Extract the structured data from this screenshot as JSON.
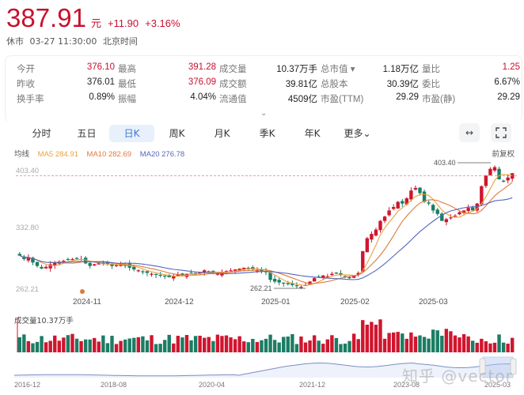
{
  "header": {
    "price": "387.91",
    "unit": "元",
    "change": "+11.90",
    "change_pct": "+3.16%",
    "market_status": "休市",
    "datetime": "03-27 11:30:00",
    "timezone": "北京时间"
  },
  "quote": {
    "rows": [
      [
        {
          "label": "今开",
          "value": "376.10",
          "color": "red"
        },
        {
          "label": "最高",
          "value": "391.28",
          "color": "red"
        },
        {
          "label": "成交量",
          "value": "10.37万手",
          "color": "black"
        },
        {
          "label": "总市值 ▾",
          "value": "1.18万亿",
          "color": "black"
        },
        {
          "label": "量比",
          "value": "1.25",
          "color": "red"
        }
      ],
      [
        {
          "label": "昨收",
          "value": "376.01",
          "color": "black"
        },
        {
          "label": "最低",
          "value": "376.09",
          "color": "red"
        },
        {
          "label": "成交额",
          "value": "39.81亿",
          "color": "black"
        },
        {
          "label": "总股本",
          "value": "30.39亿",
          "color": "black"
        },
        {
          "label": "委比",
          "value": "6.67%",
          "color": "black"
        }
      ],
      [
        {
          "label": "换手率",
          "value": "0.89%",
          "color": "black"
        },
        {
          "label": "振幅",
          "value": "4.04%",
          "color": "black"
        },
        {
          "label": "流通值",
          "value": "4509亿",
          "color": "black"
        },
        {
          "label": "市盈(TTM)",
          "value": "29.29",
          "color": "black"
        },
        {
          "label": "市盈(静)",
          "value": "29.29",
          "color": "black"
        }
      ]
    ],
    "expand_icon": "chevron-down-icon"
  },
  "tabs": [
    {
      "label": "分时",
      "active": false
    },
    {
      "label": "五日",
      "active": false
    },
    {
      "label": "日K",
      "active": true
    },
    {
      "label": "周K",
      "active": false
    },
    {
      "label": "月K",
      "active": false
    },
    {
      "label": "季K",
      "active": false
    },
    {
      "label": "年K",
      "active": false
    },
    {
      "label": "更多⌄",
      "active": false
    }
  ],
  "toolbar": {
    "fit_icon": "↔",
    "fullscreen_icon": "⛶"
  },
  "ma": {
    "label": "均线",
    "ma5": "MA5 284.91",
    "ma10": "MA10 282.69",
    "ma20": "MA20 276.78",
    "ma5_color": "#e8a33d",
    "ma10_color": "#e07a3a",
    "ma20_color": "#5566bb",
    "adjust": "前复权"
  },
  "colors": {
    "up": "#d0152e",
    "down": "#1b7d64",
    "accent": "#3b78d8"
  },
  "volume": {
    "title": "成交量10.37万手"
  },
  "overview": {
    "dates": [
      "2016-12",
      "2018-08",
      "2020-04",
      "2021-12",
      "2023-08",
      "2025-03"
    ]
  },
  "watermark": "知乎 @vector",
  "chart_data": {
    "type": "candlestick",
    "title": "日K",
    "y_ticks": [
      "403.40",
      "332.80",
      "262.21"
    ],
    "ylim": [
      262.21,
      403.4
    ],
    "x_ticks": [
      "2024-11",
      "2024-12",
      "2025-01",
      "2025-02",
      "2025-03"
    ],
    "annotations": [
      {
        "text": "403.40",
        "type": "max"
      },
      {
        "text": "262.21",
        "type": "min"
      }
    ],
    "legend": [
      "MA5 284.91",
      "MA10 282.69",
      "MA20 276.78"
    ],
    "series": [
      {
        "name": "close_approx",
        "values": [
          300,
          296,
          298,
          292,
          288,
          285,
          287,
          290,
          292,
          293,
          294,
          295,
          296,
          297,
          296,
          291,
          288,
          290,
          292,
          291,
          290,
          288,
          289,
          290,
          289,
          286,
          284,
          283,
          281,
          280,
          279,
          278,
          277,
          276,
          275,
          276,
          278,
          277,
          279,
          280,
          279,
          281,
          283,
          282,
          280,
          279,
          281,
          282,
          283,
          284,
          285,
          286,
          285,
          284,
          283,
          282,
          281,
          272,
          270,
          269,
          268,
          267,
          266,
          265,
          264,
          266,
          270,
          274,
          275,
          277,
          276,
          279,
          280,
          278,
          276,
          275,
          277,
          280,
          305,
          320,
          325,
          330,
          340,
          345,
          352,
          356,
          362,
          360,
          366,
          375,
          378,
          372,
          362,
          360,
          352,
          348,
          340,
          342,
          344,
          346,
          350,
          352,
          355,
          352,
          360,
          380,
          392,
          400,
          402,
          388,
          386,
          390,
          395
        ]
      },
      {
        "name": "volume",
        "values": "relative bars, peak near 2025-02 breakout"
      }
    ]
  }
}
